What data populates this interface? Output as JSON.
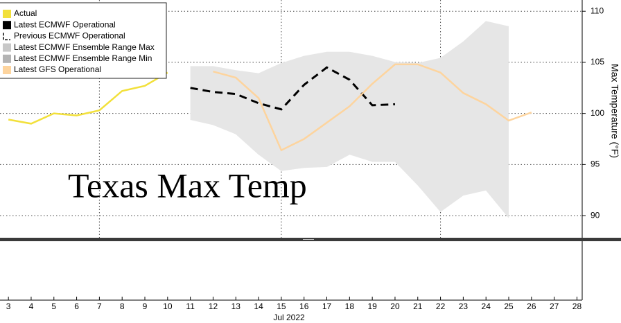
{
  "chart_data": {
    "type": "line",
    "title": "Texas Max Temp",
    "y_label": "Max Temperature (°F)",
    "x_label": "Jul 2022",
    "x": [
      3,
      4,
      5,
      6,
      7,
      8,
      9,
      10,
      11,
      12,
      13,
      14,
      15,
      16,
      17,
      18,
      19,
      20,
      21,
      22,
      23,
      24,
      25,
      26
    ],
    "xlim": [
      2.63,
      28.23
    ],
    "xticks": [
      3,
      4,
      5,
      6,
      7,
      8,
      9,
      10,
      11,
      12,
      13,
      14,
      15,
      16,
      17,
      18,
      19,
      20,
      21,
      22,
      23,
      24,
      25,
      26,
      27,
      28
    ],
    "x_gridlines": [
      7,
      15,
      22
    ],
    "ylim": [
      87.7,
      111.1
    ],
    "yticks": [
      90,
      95,
      100,
      105,
      110
    ],
    "y_axis_side": "right",
    "grid": true,
    "legend": "top-left",
    "series": [
      {
        "name": "Actual",
        "color": "#f2e03a",
        "values": [
          99.4,
          99.0,
          100.0,
          99.8,
          100.3,
          102.2,
          102.7,
          104.0,
          null,
          null,
          null,
          null,
          null,
          null,
          null,
          null,
          null,
          null,
          null,
          null,
          null,
          null,
          null,
          null
        ]
      },
      {
        "name": "Latest ECMWF Operational",
        "color": "#000000",
        "values": [
          null,
          null,
          null,
          null,
          null,
          null,
          null,
          null,
          null,
          null,
          null,
          null,
          null,
          null,
          null,
          null,
          null,
          null,
          null,
          null,
          null,
          null,
          null,
          null
        ]
      },
      {
        "name": "Previous ECMWF Operational",
        "color": "#000000",
        "dashed": true,
        "values": [
          null,
          null,
          null,
          null,
          null,
          null,
          null,
          null,
          102.5,
          102.1,
          101.9,
          101.0,
          100.4,
          102.8,
          104.5,
          103.3,
          100.8,
          100.9,
          null,
          null,
          null,
          null,
          null,
          null
        ]
      },
      {
        "name": "Latest ECMWF Ensemble Range Max",
        "color": "#c8c8c8",
        "band": "upper",
        "values": [
          null,
          null,
          null,
          null,
          null,
          null,
          null,
          null,
          104.6,
          104.6,
          104.2,
          103.9,
          104.9,
          105.6,
          106.0,
          106.0,
          105.6,
          105.0,
          104.9,
          105.4,
          107.0,
          109.0,
          108.5,
          null
        ]
      },
      {
        "name": "Latest ECMWF Ensemble Range Min",
        "color": "#b4b4b4",
        "band": "lower",
        "values": [
          null,
          null,
          null,
          null,
          null,
          null,
          null,
          null,
          99.4,
          98.9,
          98.0,
          96.0,
          94.4,
          94.7,
          94.8,
          96.0,
          95.3,
          95.3,
          93.0,
          90.4,
          92.0,
          92.5,
          89.8,
          null
        ]
      },
      {
        "name": "Latest GFS Operational",
        "color": "#fdd49e",
        "values": [
          null,
          null,
          null,
          null,
          null,
          null,
          null,
          null,
          null,
          104.1,
          103.5,
          101.5,
          96.4,
          97.5,
          99.1,
          100.7,
          102.9,
          104.8,
          104.8,
          104.0,
          102.0,
          100.9,
          99.3,
          100.1
        ]
      }
    ]
  }
}
